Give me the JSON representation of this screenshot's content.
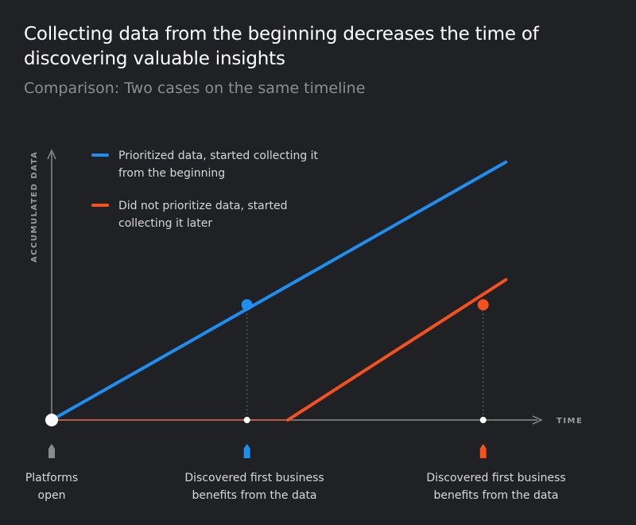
{
  "title": "Collecting data from the beginning decreases the time of discovering valuable insights",
  "subtitle": "Comparison: Two cases on the same timeline",
  "colors": {
    "background": "#202124",
    "series_a": "#1f8ef1",
    "series_b": "#f4511e",
    "axis": "#8a8b8d",
    "baseline_b": "#b85c45"
  },
  "chart_data": {
    "type": "line",
    "xlabel": "TIME",
    "ylabel": "ACCUMULATED DATA",
    "series": [
      {
        "name": "Prioritized data, started collecting it from the beginning",
        "name_lines": [
          "Prioritized data, started collecting it",
          "from the beginning"
        ],
        "color": "#1f8ef1",
        "points": [
          [
            0,
            0
          ],
          [
            10,
            10.3
          ]
        ],
        "marker": [
          4.3,
          4.6
        ]
      },
      {
        "name": "Did not prioritize data, started collecting it later",
        "name_lines": [
          "Did not prioritize data, started",
          "collecting it later"
        ],
        "color": "#f4511e",
        "points": [
          [
            0,
            0
          ],
          [
            5.2,
            0
          ],
          [
            10,
            5.6
          ]
        ],
        "marker": [
          9.5,
          4.6
        ]
      }
    ],
    "xlim": [
      0,
      10.8
    ],
    "ylim": [
      0,
      10.8
    ],
    "grid": false,
    "legend_position": "top-left"
  },
  "milestones": [
    {
      "label_lines": [
        "Platforms",
        "open"
      ],
      "color": "#8a8b8d"
    },
    {
      "label_lines": [
        "Discovered first business",
        "benefits from the data"
      ],
      "color": "#1f8ef1"
    },
    {
      "label_lines": [
        "Discovered first business",
        "benefits from the data"
      ],
      "color": "#f4511e"
    }
  ]
}
